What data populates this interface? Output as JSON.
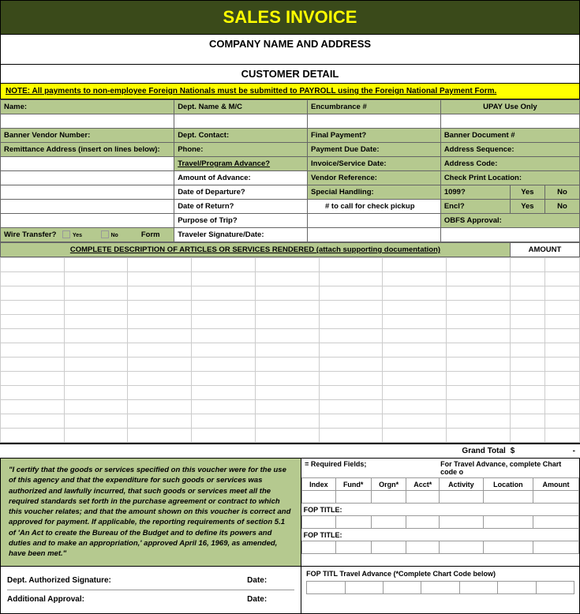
{
  "colors": {
    "header_bg": "#3a4a1a",
    "header_text": "#ffff00",
    "note_bg": "#ffff00",
    "green_cell": "#b5c98f",
    "border": "#000000",
    "light_border": "#cccccc"
  },
  "title": "SALES INVOICE",
  "company_line": "COMPANY NAME AND ADDRESS",
  "customer_line": "CUSTOMER DETAIL",
  "note": "NOTE:  All payments to non-employee Foreign Nationals must be submitted to PAYROLL using the Foreign National Payment Form.",
  "upay_header": "UPAY Use Only",
  "col1": {
    "name": "Name:",
    "banner_vendor": "Banner Vendor Number:",
    "remit": "Remittance Address (insert on lines below):",
    "wire": "Wire Transfer?",
    "wire_yes": "Yes",
    "wire_no": "No",
    "form": "Form"
  },
  "col2": {
    "dept_name": "Dept. Name & M/C",
    "dept_contact": "Dept. Contact:",
    "phone": "Phone:",
    "travel": "Travel/Program Advance?",
    "amount_adv": "Amount of Advance:",
    "date_dep": "Date of Departure?",
    "date_ret": "Date of Return?",
    "purpose": "Purpose of Trip?",
    "traveler": "Traveler Signature/Date:"
  },
  "col3": {
    "encumbrance": "Encumbrance #",
    "final_pay": "Final Payment?",
    "pay_due": "Payment Due Date:",
    "invoice_date": "Invoice/Service Date:",
    "vendor_ref": "Vendor Reference:",
    "special": "Special Handling:",
    "call_pickup": "# to call for check pickup"
  },
  "col4": {
    "banner_doc": "Banner Document #",
    "addr_seq": "Address Sequence:",
    "addr_code": "Address Code:",
    "check_print": "Check Print Location:",
    "t1099": "1099?",
    "encl": "Encl?",
    "yes": "Yes",
    "no": "No",
    "obfs": "OBFS Approval:"
  },
  "desc_header": "COMPLETE DESCRIPTION OF ARTICLES OR SERVICES RENDERED (attach supporting documentation)",
  "amount_header": "AMOUNT",
  "desc_rows": 13,
  "grand_total_label": "Grand Total",
  "grand_total_currency": "$",
  "grand_total_dash": "-",
  "certification": "\"I certify that the goods or services specified on this voucher were for the use of this agency and that the expenditure for such goods or services was authorized and lawfully incurred, that such goods or services meet all the required standards set forth in the purchase agreement or contract to which this voucher relates; and that the amount shown on this voucher is correct and approved for payment.  If applicable, the reporting requirements of section 5.1 of 'An Act to create the Bureau of the Budget and to define its powers and duties and to make an appropriation,' approved April 16, 1969, as amended, have been met.\"",
  "chart_head_left": "= Required Fields;",
  "chart_head_right": "For Travel Advance, complete Chart code o",
  "chart_cols": [
    "Index",
    "Fund*",
    "Orgn*",
    "Acct*",
    "Activity",
    "Location",
    "Amount"
  ],
  "fop_title": "FOP TITLE:",
  "fop_title_short": "FOP TITL",
  "travel_adv_note": "Travel Advance (*Complete Chart Code below)",
  "sig": {
    "dept_auth": "Dept. Authorized Signature:",
    "add_appr": "Additional Approval:",
    "date": "Date:"
  }
}
